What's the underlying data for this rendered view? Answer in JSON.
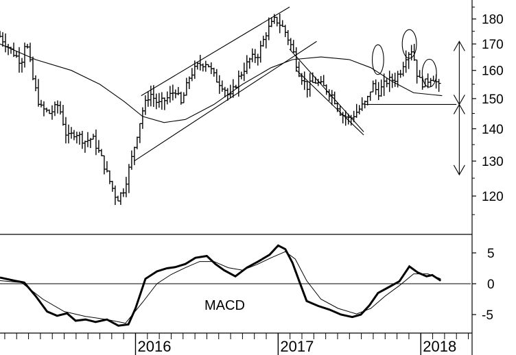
{
  "chart_data": [
    {
      "type": "ohlc",
      "y_axis": "right",
      "y_scale": "log",
      "ylim": [
        112,
        188
      ],
      "yticks": [
        120,
        130,
        140,
        150,
        160,
        170,
        180
      ],
      "x_year_ticks": [
        {
          "label": "2016",
          "t": 2016.0
        },
        {
          "label": "2017",
          "t": 2017.0
        },
        {
          "label": "2018",
          "t": 2018.0
        }
      ],
      "xlim": [
        2015.05,
        2018.35
      ],
      "price_path": [
        [
          2015.05,
          173
        ],
        [
          2015.12,
          168
        ],
        [
          2015.2,
          163
        ],
        [
          2015.23,
          172
        ],
        [
          2015.28,
          157
        ],
        [
          2015.33,
          147
        ],
        [
          2015.4,
          145
        ],
        [
          2015.46,
          148
        ],
        [
          2015.52,
          137
        ],
        [
          2015.58,
          139
        ],
        [
          2015.64,
          136
        ],
        [
          2015.7,
          137
        ],
        [
          2015.76,
          131
        ],
        [
          2015.82,
          124
        ],
        [
          2015.87,
          119
        ],
        [
          2015.92,
          122
        ],
        [
          2015.98,
          132
        ],
        [
          2016.05,
          146
        ],
        [
          2016.1,
          152
        ],
        [
          2016.16,
          148
        ],
        [
          2016.22,
          150
        ],
        [
          2016.28,
          153
        ],
        [
          2016.32,
          148
        ],
        [
          2016.38,
          158
        ],
        [
          2016.44,
          162
        ],
        [
          2016.5,
          163
        ],
        [
          2016.56,
          157
        ],
        [
          2016.62,
          154
        ],
        [
          2016.66,
          150
        ],
        [
          2016.72,
          157
        ],
        [
          2016.8,
          164
        ],
        [
          2016.86,
          166
        ],
        [
          2016.92,
          175
        ],
        [
          2016.98,
          180
        ],
        [
          2017.04,
          176
        ],
        [
          2017.1,
          168
        ],
        [
          2017.14,
          160
        ],
        [
          2017.2,
          154
        ],
        [
          2017.26,
          156
        ],
        [
          2017.32,
          154
        ],
        [
          2017.38,
          151
        ],
        [
          2017.44,
          145
        ],
        [
          2017.5,
          143
        ],
        [
          2017.56,
          146
        ],
        [
          2017.62,
          149
        ],
        [
          2017.66,
          155
        ],
        [
          2017.7,
          152
        ],
        [
          2017.76,
          156
        ],
        [
          2017.82,
          157
        ],
        [
          2017.86,
          160
        ],
        [
          2017.9,
          166
        ],
        [
          2017.94,
          168
        ],
        [
          2017.98,
          157
        ],
        [
          2018.02,
          155
        ],
        [
          2018.08,
          158
        ],
        [
          2018.14,
          153
        ]
      ],
      "moving_average": [
        [
          2015.05,
          170
        ],
        [
          2015.3,
          164
        ],
        [
          2015.55,
          160
        ],
        [
          2015.75,
          155
        ],
        [
          2015.92,
          149
        ],
        [
          2016.05,
          144
        ],
        [
          2016.2,
          142
        ],
        [
          2016.35,
          143
        ],
        [
          2016.55,
          148
        ],
        [
          2016.75,
          155
        ],
        [
          2016.95,
          161
        ],
        [
          2017.1,
          164
        ],
        [
          2017.3,
          165
        ],
        [
          2017.5,
          164
        ],
        [
          2017.65,
          161
        ],
        [
          2017.8,
          156
        ],
        [
          2017.95,
          152
        ],
        [
          2018.15,
          151
        ]
      ],
      "trendlines": [
        {
          "points": [
            [
              2016.04,
              151
            ],
            [
              2017.08,
              185
            ]
          ]
        },
        {
          "points": [
            [
              2015.99,
              130
            ],
            [
              2017.27,
              171
            ]
          ]
        },
        {
          "points": [
            [
              2017.13,
              160
            ],
            [
              2017.6,
              138
            ]
          ]
        },
        {
          "points": [
            [
              2017.08,
              168
            ],
            [
              2017.6,
              139
            ]
          ]
        },
        {
          "points": [
            [
              2017.61,
              148
            ],
            [
              2018.25,
              148
            ]
          ]
        }
      ],
      "ellipses": [
        {
          "t": 2017.7,
          "p": 164,
          "rt": 0.04,
          "rp": 5.5
        },
        {
          "t": 2017.92,
          "p": 170,
          "rt": 0.05,
          "rp": 5.5
        },
        {
          "t": 2018.06,
          "p": 159,
          "rt": 0.05,
          "rp": 5
        }
      ],
      "projection_arrows": [
        {
          "t": 2018.27,
          "from": 148,
          "to": 171
        },
        {
          "t": 2018.27,
          "from": 148,
          "to": 126
        }
      ]
    },
    {
      "type": "line",
      "label": "MACD",
      "y_axis": "right",
      "ylim": [
        -8,
        8
      ],
      "yticks": [
        5,
        0,
        -5
      ],
      "zero_line": true,
      "macd": [
        [
          2015.05,
          1
        ],
        [
          2015.15,
          0.5
        ],
        [
          2015.22,
          0.2
        ],
        [
          2015.3,
          -2
        ],
        [
          2015.38,
          -4.5
        ],
        [
          2015.45,
          -5.2
        ],
        [
          2015.52,
          -4.8
        ],
        [
          2015.58,
          -6
        ],
        [
          2015.65,
          -5.8
        ],
        [
          2015.72,
          -6.2
        ],
        [
          2015.8,
          -5.8
        ],
        [
          2015.88,
          -6.8
        ],
        [
          2015.95,
          -6.6
        ],
        [
          2016.0,
          -4
        ],
        [
          2016.07,
          0.8
        ],
        [
          2016.15,
          2
        ],
        [
          2016.22,
          2.5
        ],
        [
          2016.28,
          2.7
        ],
        [
          2016.35,
          3.2
        ],
        [
          2016.42,
          4.2
        ],
        [
          2016.5,
          4.5
        ],
        [
          2016.56,
          3.2
        ],
        [
          2016.62,
          2.2
        ],
        [
          2016.7,
          1.2
        ],
        [
          2016.78,
          2.6
        ],
        [
          2016.86,
          3.6
        ],
        [
          2016.94,
          4.7
        ],
        [
          2017.0,
          6.2
        ],
        [
          2017.05,
          5.6
        ],
        [
          2017.1,
          3.4
        ],
        [
          2017.15,
          0.3
        ],
        [
          2017.2,
          -2.8
        ],
        [
          2017.28,
          -3.6
        ],
        [
          2017.36,
          -4.2
        ],
        [
          2017.44,
          -5
        ],
        [
          2017.52,
          -5.4
        ],
        [
          2017.58,
          -5
        ],
        [
          2017.64,
          -3.5
        ],
        [
          2017.7,
          -1.5
        ],
        [
          2017.78,
          -0.5
        ],
        [
          2017.85,
          0.4
        ],
        [
          2017.92,
          2.8
        ],
        [
          2017.98,
          1.8
        ],
        [
          2018.04,
          1.2
        ],
        [
          2018.08,
          1.4
        ],
        [
          2018.14,
          0.5
        ]
      ],
      "signal": [
        [
          2015.05,
          0.5
        ],
        [
          2015.2,
          0.2
        ],
        [
          2015.35,
          -2.5
        ],
        [
          2015.5,
          -4.5
        ],
        [
          2015.65,
          -5.3
        ],
        [
          2015.8,
          -5.8
        ],
        [
          2015.93,
          -6.4
        ],
        [
          2016.05,
          -3
        ],
        [
          2016.15,
          0
        ],
        [
          2016.25,
          1.5
        ],
        [
          2016.35,
          2.6
        ],
        [
          2016.45,
          3.6
        ],
        [
          2016.55,
          3.6
        ],
        [
          2016.65,
          2.6
        ],
        [
          2016.75,
          2.2
        ],
        [
          2016.85,
          3.1
        ],
        [
          2016.95,
          4.2
        ],
        [
          2017.05,
          5.2
        ],
        [
          2017.12,
          4
        ],
        [
          2017.2,
          0.5
        ],
        [
          2017.3,
          -2.5
        ],
        [
          2017.42,
          -4
        ],
        [
          2017.55,
          -4.9
        ],
        [
          2017.65,
          -4
        ],
        [
          2017.75,
          -2
        ],
        [
          2017.85,
          -0.3
        ],
        [
          2017.95,
          1.6
        ],
        [
          2018.05,
          1.6
        ],
        [
          2018.14,
          0.8
        ]
      ]
    }
  ]
}
